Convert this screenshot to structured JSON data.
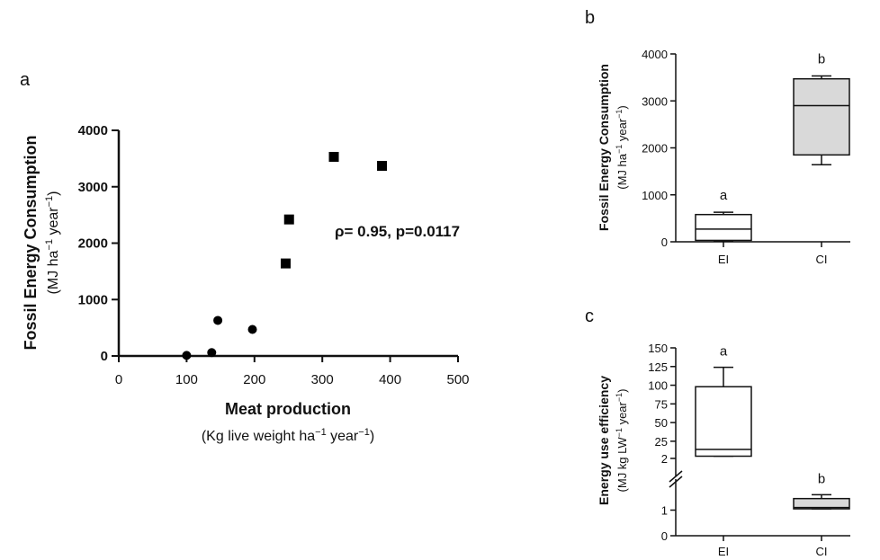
{
  "panels": {
    "a": {
      "label": "a",
      "ylabel_bold": "Fossil Energy Consumption",
      "ylabel_unit_pre": "(MJ ha",
      "ylabel_unit_mid": " year",
      "ylabel_unit_end": ")",
      "xlabel_bold": "Meat production",
      "xlabel_unit_pre": "(Kg live weight ha",
      "xlabel_unit_mid": " year",
      "xlabel_unit_end": ")",
      "exp": "−1",
      "annotation": "ρ= 0.95, p=0.0117"
    },
    "b": {
      "label": "b",
      "ylabel_bold": "Fossil Energy Consumption",
      "ylabel_unit_pre": "(MJ ha",
      "ylabel_unit_mid": " year",
      "ylabel_unit_end": ")",
      "exp": "−1",
      "sig": [
        "a",
        "b"
      ]
    },
    "c": {
      "label": "c",
      "ylabel_bold": "Energy use efficiency",
      "ylabel_unit_pre": "(MJ kg LW",
      "ylabel_unit_mid": " year",
      "ylabel_unit_end": ")",
      "exp": "−1",
      "sig": [
        "a",
        "b"
      ]
    }
  },
  "chart_data": [
    {
      "type": "scatter",
      "panel": "a",
      "xlim": [
        0,
        500
      ],
      "ylim": [
        0,
        4000
      ],
      "xticks": [
        0,
        100,
        200,
        300,
        400,
        500
      ],
      "yticks": [
        0,
        1000,
        2000,
        3000,
        4000
      ],
      "series": [
        {
          "marker": "circle",
          "points": [
            [
              100,
              10
            ],
            [
              137,
              60
            ],
            [
              146,
              630
            ],
            [
              197,
              470
            ]
          ]
        },
        {
          "marker": "square",
          "points": [
            [
              246,
              1640
            ],
            [
              251,
              2420
            ],
            [
              317,
              3530
            ],
            [
              388,
              3370
            ]
          ]
        }
      ]
    },
    {
      "type": "box",
      "panel": "b",
      "categories": [
        "EI",
        "CI"
      ],
      "ylim": [
        0,
        4000
      ],
      "yticks": [
        0,
        1000,
        2000,
        3000,
        4000
      ],
      "boxes": [
        {
          "min": 10,
          "q1": 30,
          "median": 270,
          "q3": 580,
          "max": 630,
          "fill": "#ffffff"
        },
        {
          "min": 1640,
          "q1": 1850,
          "median": 2900,
          "q3": 3470,
          "max": 3530,
          "fill": "#d9d9d9"
        }
      ]
    },
    {
      "type": "box",
      "panel": "c",
      "categories": [
        "EI",
        "CI"
      ],
      "yaxis_break": true,
      "ylim_lower": [
        0,
        2
      ],
      "ylim_upper": [
        2,
        150
      ],
      "yticks_lower": [
        0,
        1,
        2
      ],
      "yticks_upper": [
        25,
        50,
        75,
        100,
        125,
        150
      ],
      "boxes": [
        {
          "min": 5,
          "q1": 5,
          "median": 14,
          "q3": 98,
          "max": 124,
          "fill": "#ffffff"
        },
        {
          "min": 1.05,
          "q1": 1.05,
          "median": 1.1,
          "q3": 1.45,
          "max": 1.6,
          "fill": "#d9d9d9"
        }
      ]
    }
  ]
}
